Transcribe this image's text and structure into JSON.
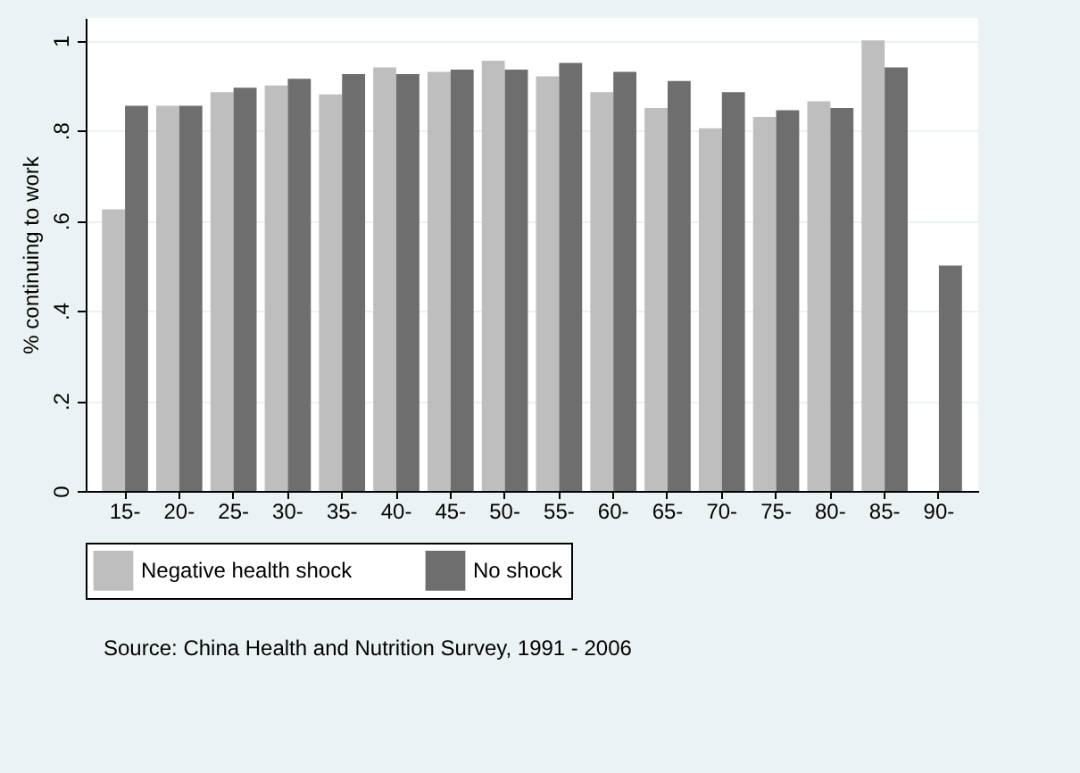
{
  "chart_data": {
    "type": "bar",
    "ylabel": "% continuing to work",
    "categories": [
      "15-",
      "20-",
      "25-",
      "30-",
      "35-",
      "40-",
      "45-",
      "50-",
      "55-",
      "60-",
      "65-",
      "70-",
      "75-",
      "80-",
      "85-",
      "90-"
    ],
    "series": [
      {
        "name": "Negative health shock",
        "color": "#bebebe",
        "values": [
          0.625,
          0.855,
          0.885,
          0.9,
          0.88,
          0.94,
          0.93,
          0.955,
          0.92,
          0.885,
          0.85,
          0.805,
          0.83,
          0.865,
          1.0,
          null
        ]
      },
      {
        "name": "No shock",
        "color": "#6e6e6e",
        "values": [
          0.855,
          0.855,
          0.895,
          0.915,
          0.925,
          0.925,
          0.935,
          0.935,
          0.95,
          0.93,
          0.91,
          0.885,
          0.845,
          0.85,
          0.94,
          0.5
        ]
      }
    ],
    "ylim": [
      0,
      1.05
    ],
    "yticks": [
      "0",
      {
        "value": 0.2,
        "label": ".2"
      },
      {
        "value": 0.4,
        "label": ".4"
      },
      {
        "value": 0.6,
        "label": ".6"
      },
      {
        "value": 0.8,
        "label": ".8"
      },
      "1"
    ],
    "grid": "y",
    "legend": "bottom",
    "annotations": [
      "Source: China Health and Nutrition Survey, 1991 - 2006"
    ]
  }
}
